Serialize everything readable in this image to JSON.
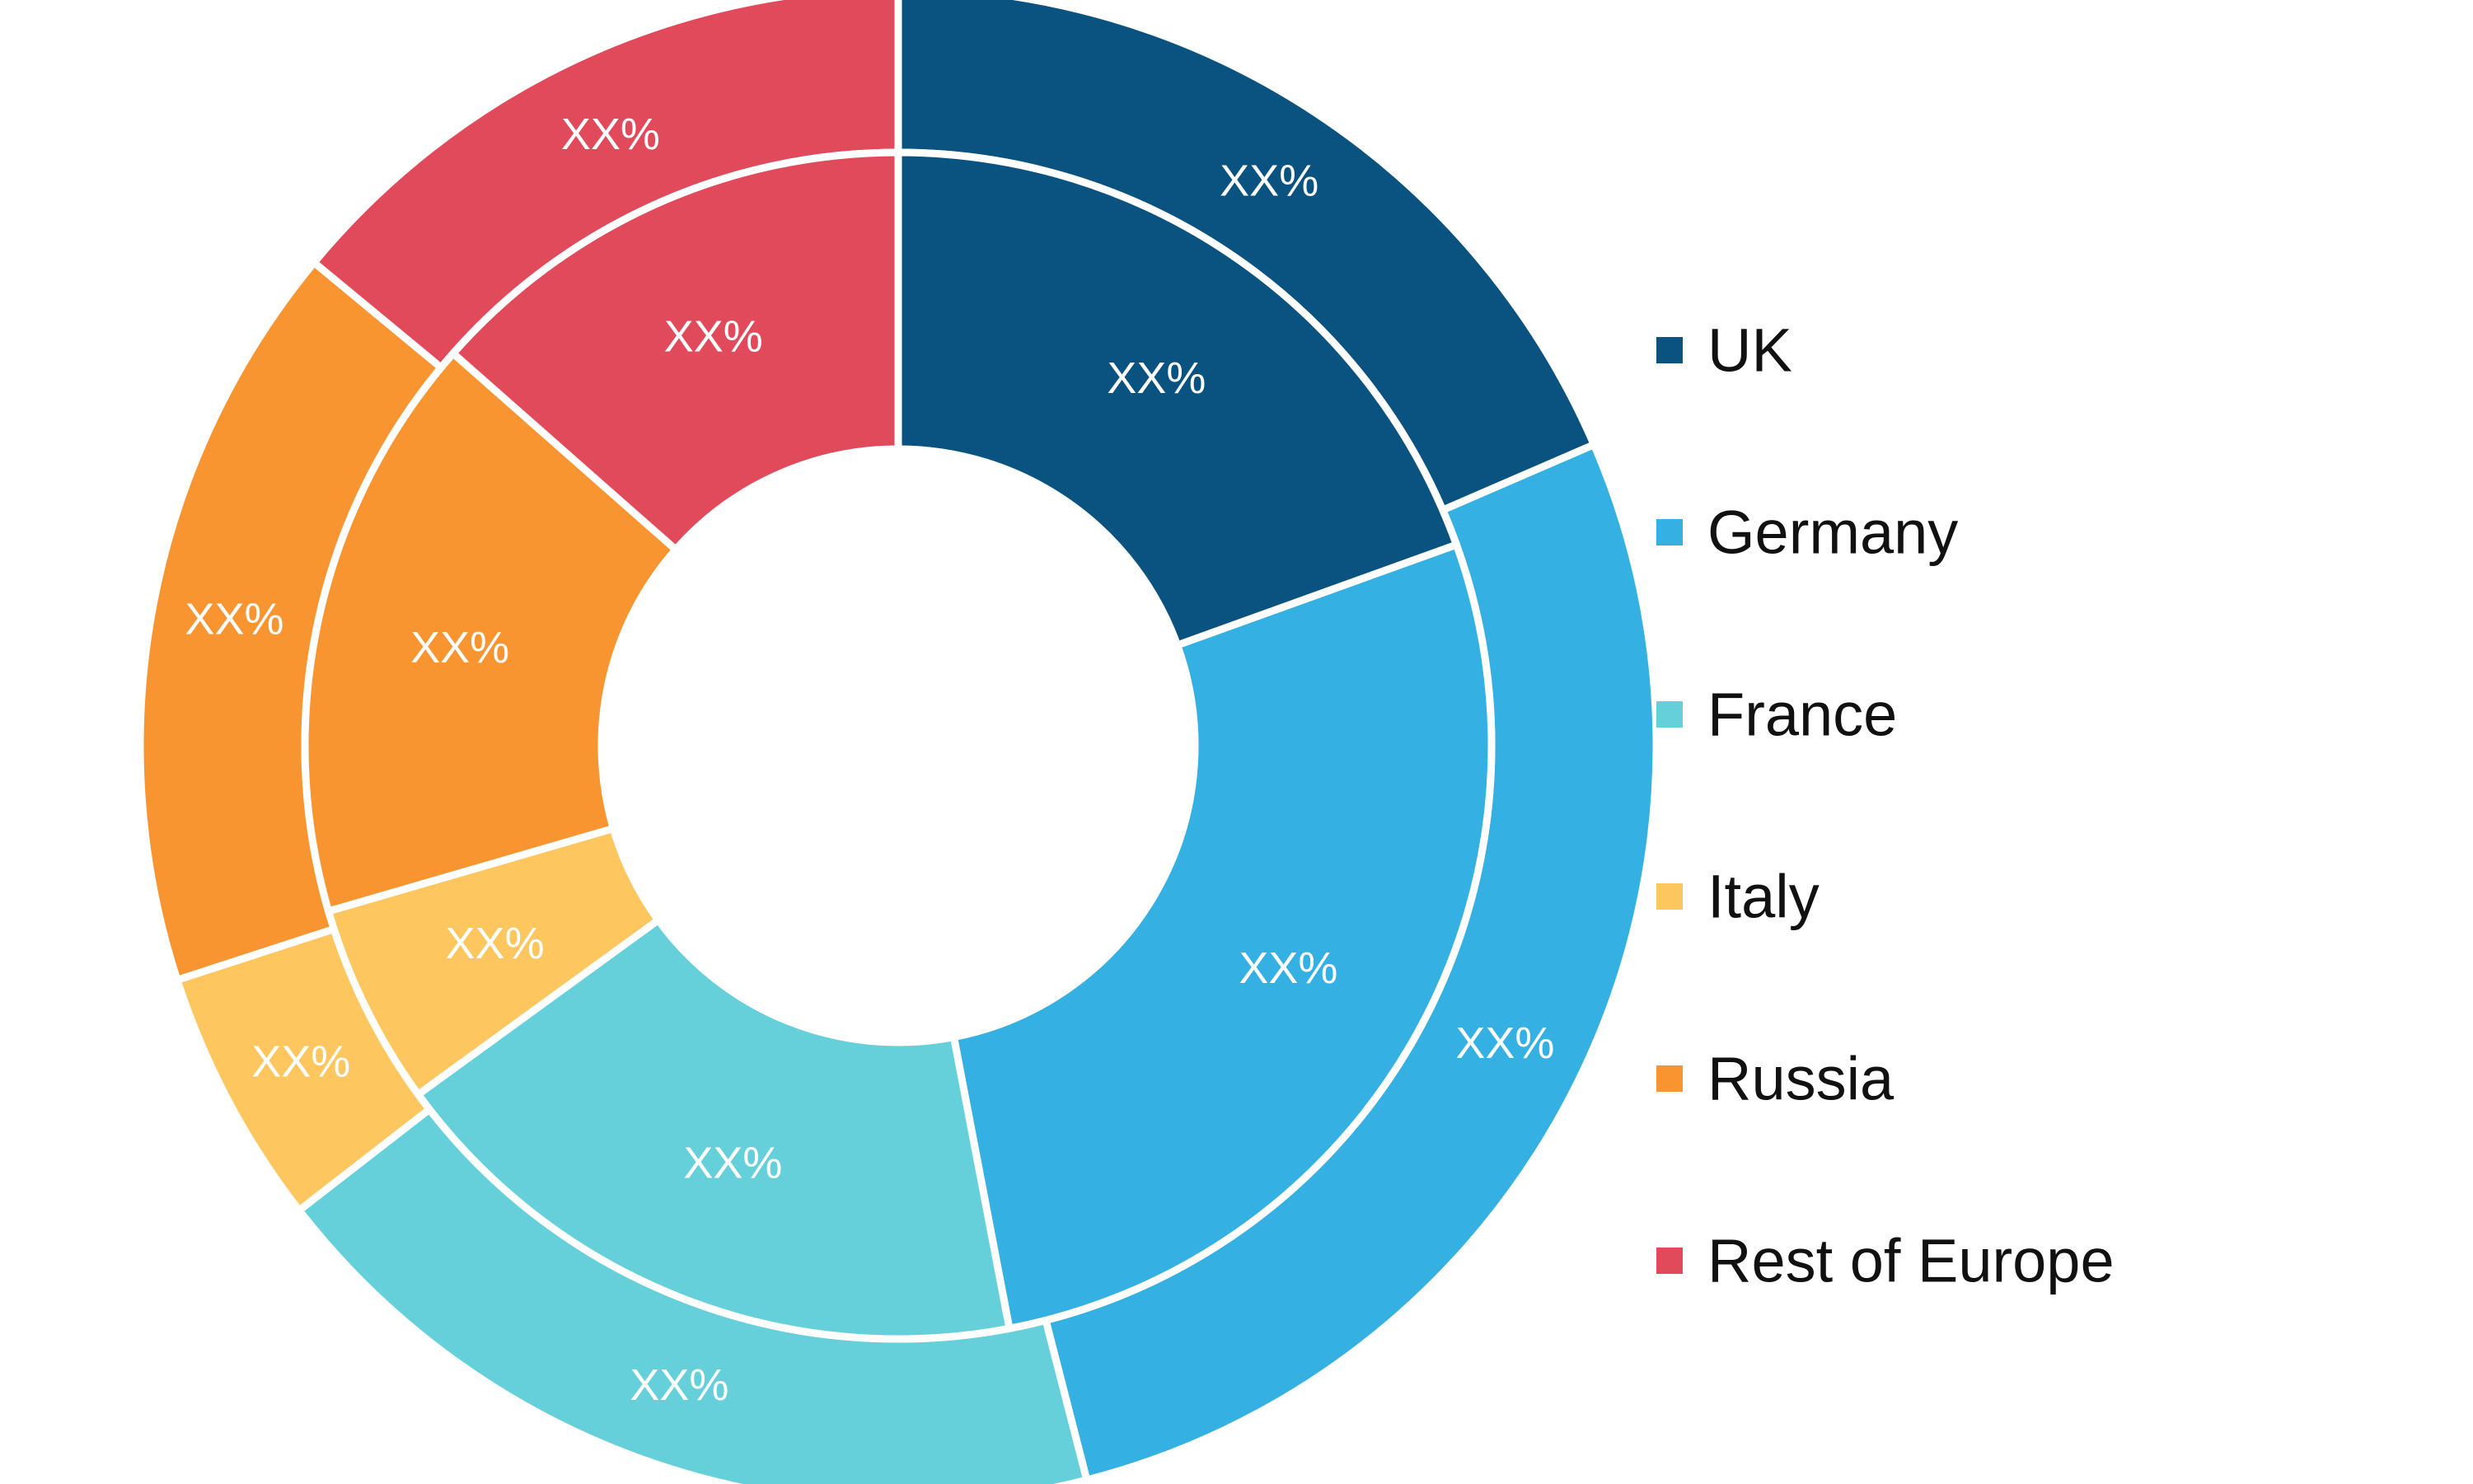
{
  "chart_data": {
    "type": "pie",
    "subtype": "nested-donut",
    "categories": [
      "UK",
      "Germany",
      "France",
      "Italy",
      "Russia",
      "Rest of Europe"
    ],
    "colors": [
      "#0a527f",
      "#35b0e2",
      "#66d0da",
      "#fdc65e",
      "#f99531",
      "#e14a5a"
    ],
    "series": [
      {
        "ring": "outer",
        "values": [
          18.5,
          27.5,
          18.5,
          5.5,
          16,
          14
        ],
        "labels": [
          "XX%",
          "XX%",
          "XX%",
          "XX%",
          "XX%",
          "XX%"
        ]
      },
      {
        "ring": "inner",
        "values": [
          19.5,
          27.5,
          18,
          5.5,
          16,
          13.5
        ],
        "labels": [
          "XX%",
          "XX%",
          "XX%",
          "XX%",
          "XX%",
          "XX%"
        ]
      }
    ],
    "legend_position": "right"
  }
}
